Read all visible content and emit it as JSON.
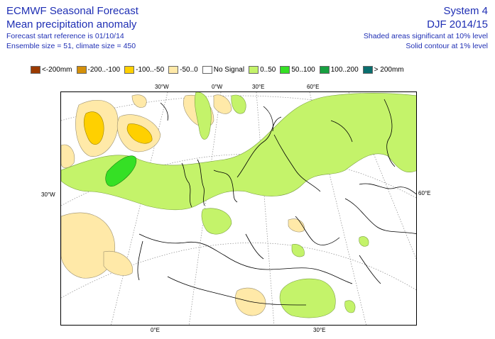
{
  "header": {
    "title_line1": "ECMWF Seasonal Forecast",
    "title_line2": "Mean precipitation anomaly",
    "info_line1": "Forecast start reference is 01/10/14",
    "info_line2": "Ensemble size = 51, climate size = 450",
    "system": "System 4",
    "season": "DJF 2014/15",
    "note_line1": "Shaded areas significant at 10% level",
    "note_line2": "Solid contour at 1% level"
  },
  "legend": [
    {
      "label": "<-200mm",
      "color": "#9b3a00"
    },
    {
      "label": "-200..-100",
      "color": "#d4900a"
    },
    {
      "label": "-100..-50",
      "color": "#ffd000"
    },
    {
      "label": "-50..0",
      "color": "#ffe9a8"
    },
    {
      "label": "No Signal",
      "color": "#ffffff"
    },
    {
      "label": "0..50",
      "color": "#c4f36a"
    },
    {
      "label": "50..100",
      "color": "#35e025"
    },
    {
      "label": "100..200",
      "color": "#17a040"
    },
    {
      "label": "> 200mm",
      "color": "#0a6e6e"
    }
  ],
  "axis_labels": {
    "top_30w": "30°W",
    "top_0w": "0°W",
    "top_30e": "30°E",
    "top_60e": "60°E",
    "left_30w": "30°W",
    "right_60e": "60°E",
    "bottom_0e": "0°E",
    "bottom_30e": "30°E"
  }
}
